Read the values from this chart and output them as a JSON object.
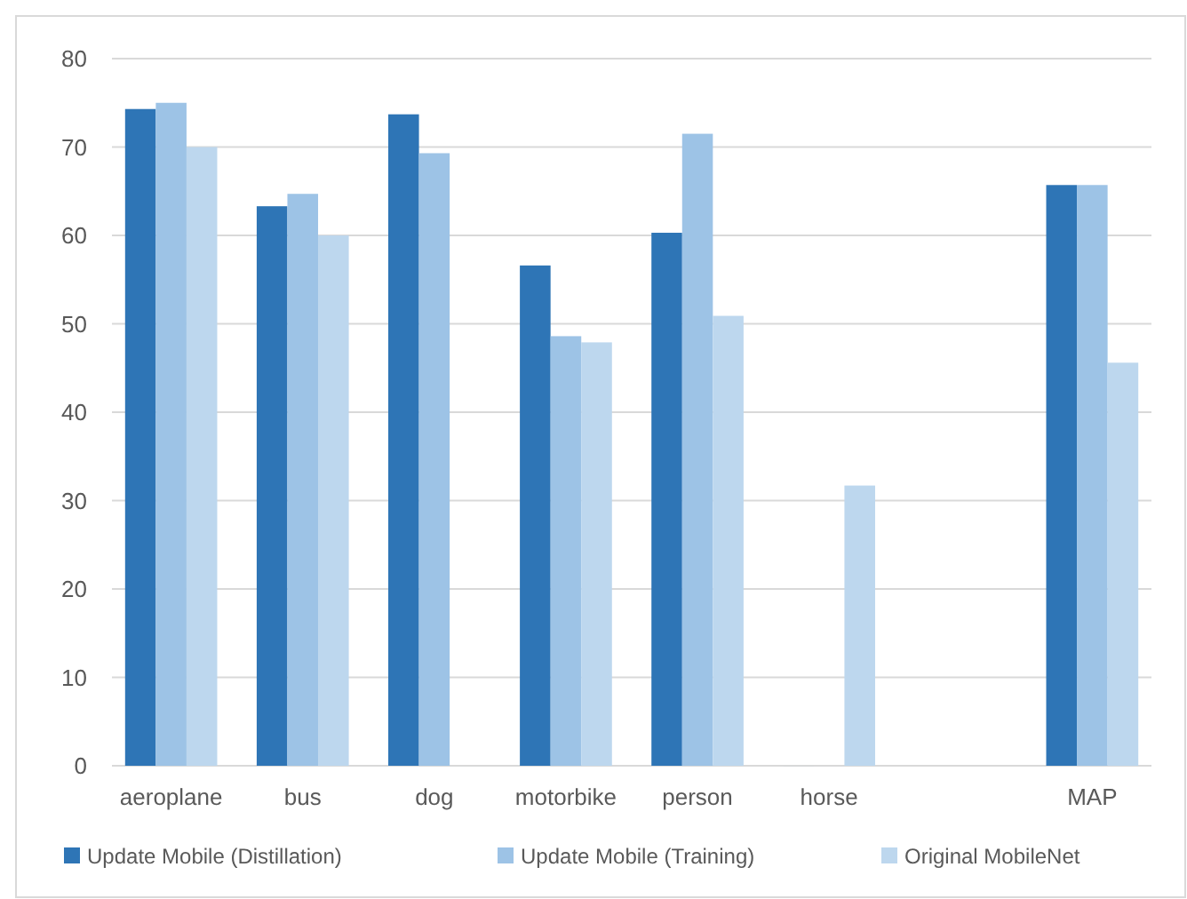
{
  "chart_data": {
    "type": "bar",
    "categories": [
      "aeroplane",
      "bus",
      "dog",
      "motorbike",
      "person",
      "horse",
      null,
      "MAP"
    ],
    "series": [
      {
        "name": "Update Mobile (Distillation)",
        "color": "#2e75b6",
        "values": [
          74.3,
          63.3,
          73.7,
          56.6,
          60.3,
          0,
          null,
          65.7
        ]
      },
      {
        "name": "Update Mobile (Training)",
        "color": "#9dc3e6",
        "values": [
          75,
          64.7,
          69.3,
          48.6,
          71.5,
          0,
          null,
          65.7
        ]
      },
      {
        "name": "Original MobileNet",
        "color": "#bdd7ee",
        "values": [
          70,
          60,
          0,
          47.9,
          50.9,
          31.7,
          null,
          45.6
        ]
      }
    ],
    "ylim": [
      0,
      80
    ],
    "yticks": [
      0,
      10,
      20,
      30,
      40,
      50,
      60,
      70,
      80
    ],
    "grid": "y",
    "legend": "bottom"
  }
}
